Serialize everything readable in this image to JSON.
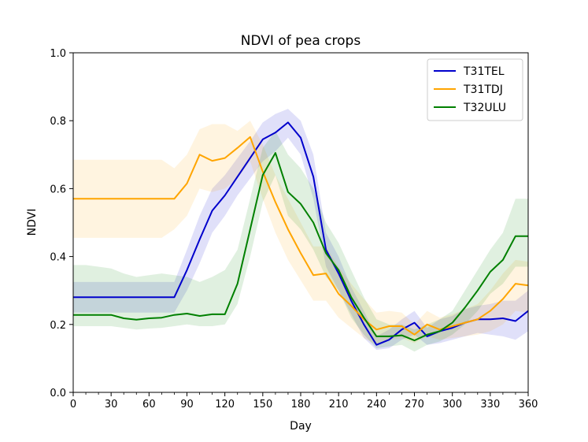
{
  "chart_data": {
    "type": "line",
    "title": "NDVI of pea crops",
    "xlabel": "Day",
    "ylabel": "NDVI",
    "xlim": [
      0,
      360
    ],
    "ylim": [
      0.0,
      1.0
    ],
    "xticks": [
      0,
      30,
      60,
      90,
      120,
      150,
      180,
      210,
      240,
      270,
      300,
      330,
      360
    ],
    "xtick_labels": [
      "0",
      "30",
      "60",
      "90",
      "120",
      "150",
      "180",
      "210",
      "240",
      "270",
      "300",
      "330",
      "360"
    ],
    "xminor_step": 10,
    "yticks": [
      0.0,
      0.2,
      0.4,
      0.6,
      0.8,
      1.0
    ],
    "ytick_labels": [
      "0.0",
      "0.2",
      "0.4",
      "0.6",
      "0.8",
      "1.0"
    ],
    "legend_position": "top-right",
    "series": [
      {
        "name": "T31TEL",
        "color": "#0000cc",
        "x": [
          0,
          10,
          20,
          30,
          40,
          50,
          60,
          70,
          80,
          90,
          100,
          110,
          120,
          130,
          140,
          150,
          160,
          170,
          180,
          190,
          200,
          210,
          220,
          230,
          240,
          250,
          260,
          270,
          280,
          290,
          300,
          310,
          320,
          330,
          340,
          350,
          360
        ],
        "y": [
          0.28,
          0.28,
          0.28,
          0.28,
          0.28,
          0.28,
          0.28,
          0.28,
          0.28,
          0.36,
          0.45,
          0.535,
          0.58,
          0.635,
          0.69,
          0.745,
          0.765,
          0.795,
          0.75,
          0.635,
          0.42,
          0.35,
          0.27,
          0.2,
          0.14,
          0.155,
          0.185,
          0.205,
          0.165,
          0.18,
          0.19,
          0.205,
          0.215,
          0.215,
          0.218,
          0.21,
          0.24
        ],
        "lower": [
          0.235,
          0.235,
          0.235,
          0.235,
          0.235,
          0.235,
          0.235,
          0.235,
          0.235,
          0.3,
          0.38,
          0.47,
          0.52,
          0.58,
          0.63,
          0.68,
          0.71,
          0.75,
          0.7,
          0.57,
          0.37,
          0.3,
          0.23,
          0.16,
          0.125,
          0.13,
          0.155,
          0.17,
          0.14,
          0.145,
          0.155,
          0.165,
          0.175,
          0.17,
          0.165,
          0.155,
          0.18
        ],
        "upper": [
          0.325,
          0.325,
          0.325,
          0.325,
          0.325,
          0.325,
          0.325,
          0.325,
          0.325,
          0.42,
          0.52,
          0.6,
          0.64,
          0.69,
          0.74,
          0.795,
          0.82,
          0.835,
          0.8,
          0.7,
          0.47,
          0.4,
          0.31,
          0.24,
          0.165,
          0.185,
          0.215,
          0.24,
          0.19,
          0.215,
          0.225,
          0.245,
          0.255,
          0.26,
          0.27,
          0.27,
          0.3
        ]
      },
      {
        "name": "T31TDJ",
        "color": "#ffa500",
        "x": [
          0,
          10,
          20,
          30,
          40,
          50,
          60,
          70,
          80,
          90,
          100,
          110,
          120,
          130,
          140,
          150,
          160,
          170,
          180,
          190,
          200,
          210,
          220,
          230,
          240,
          250,
          260,
          270,
          280,
          290,
          300,
          310,
          320,
          330,
          340,
          350,
          360
        ],
        "y": [
          0.57,
          0.57,
          0.57,
          0.57,
          0.57,
          0.57,
          0.57,
          0.57,
          0.57,
          0.615,
          0.7,
          0.682,
          0.69,
          0.72,
          0.752,
          0.65,
          0.56,
          0.48,
          0.41,
          0.345,
          0.35,
          0.29,
          0.255,
          0.215,
          0.185,
          0.195,
          0.195,
          0.17,
          0.2,
          0.185,
          0.195,
          0.205,
          0.215,
          0.24,
          0.275,
          0.32,
          0.315
        ],
        "lower": [
          0.455,
          0.455,
          0.455,
          0.455,
          0.455,
          0.455,
          0.455,
          0.455,
          0.48,
          0.52,
          0.6,
          0.59,
          0.6,
          0.63,
          0.68,
          0.57,
          0.47,
          0.39,
          0.33,
          0.27,
          0.27,
          0.22,
          0.19,
          0.16,
          0.14,
          0.155,
          0.16,
          0.145,
          0.165,
          0.155,
          0.16,
          0.165,
          0.17,
          0.18,
          0.2,
          0.24,
          0.235
        ],
        "upper": [
          0.685,
          0.685,
          0.685,
          0.685,
          0.685,
          0.685,
          0.685,
          0.685,
          0.66,
          0.7,
          0.775,
          0.79,
          0.79,
          0.77,
          0.8,
          0.73,
          0.64,
          0.57,
          0.5,
          0.43,
          0.43,
          0.37,
          0.32,
          0.275,
          0.235,
          0.24,
          0.235,
          0.2,
          0.24,
          0.22,
          0.23,
          0.245,
          0.26,
          0.3,
          0.35,
          0.39,
          0.385
        ]
      },
      {
        "name": "T32ULU",
        "color": "#008000",
        "x": [
          0,
          10,
          20,
          30,
          40,
          50,
          60,
          70,
          80,
          90,
          100,
          110,
          120,
          130,
          140,
          150,
          160,
          170,
          180,
          190,
          200,
          210,
          220,
          230,
          240,
          250,
          260,
          270,
          280,
          290,
          300,
          310,
          320,
          330,
          340,
          350,
          360
        ],
        "y": [
          0.228,
          0.228,
          0.228,
          0.228,
          0.218,
          0.214,
          0.218,
          0.22,
          0.228,
          0.232,
          0.225,
          0.23,
          0.23,
          0.32,
          0.48,
          0.64,
          0.705,
          0.59,
          0.555,
          0.5,
          0.41,
          0.36,
          0.28,
          0.22,
          0.165,
          0.165,
          0.168,
          0.153,
          0.17,
          0.18,
          0.205,
          0.25,
          0.3,
          0.355,
          0.39,
          0.46,
          0.46
        ],
        "lower": [
          0.195,
          0.195,
          0.195,
          0.195,
          0.19,
          0.185,
          0.188,
          0.19,
          0.195,
          0.2,
          0.195,
          0.195,
          0.2,
          0.26,
          0.4,
          0.56,
          0.64,
          0.52,
          0.48,
          0.42,
          0.34,
          0.3,
          0.22,
          0.17,
          0.13,
          0.135,
          0.14,
          0.12,
          0.14,
          0.15,
          0.17,
          0.2,
          0.24,
          0.29,
          0.32,
          0.37,
          0.37
        ],
        "upper": [
          0.375,
          0.375,
          0.37,
          0.365,
          0.35,
          0.34,
          0.345,
          0.35,
          0.345,
          0.34,
          0.325,
          0.34,
          0.36,
          0.42,
          0.57,
          0.72,
          0.77,
          0.7,
          0.66,
          0.6,
          0.5,
          0.44,
          0.36,
          0.28,
          0.215,
          0.2,
          0.2,
          0.185,
          0.2,
          0.215,
          0.24,
          0.3,
          0.36,
          0.42,
          0.47,
          0.57,
          0.57
        ]
      }
    ]
  }
}
